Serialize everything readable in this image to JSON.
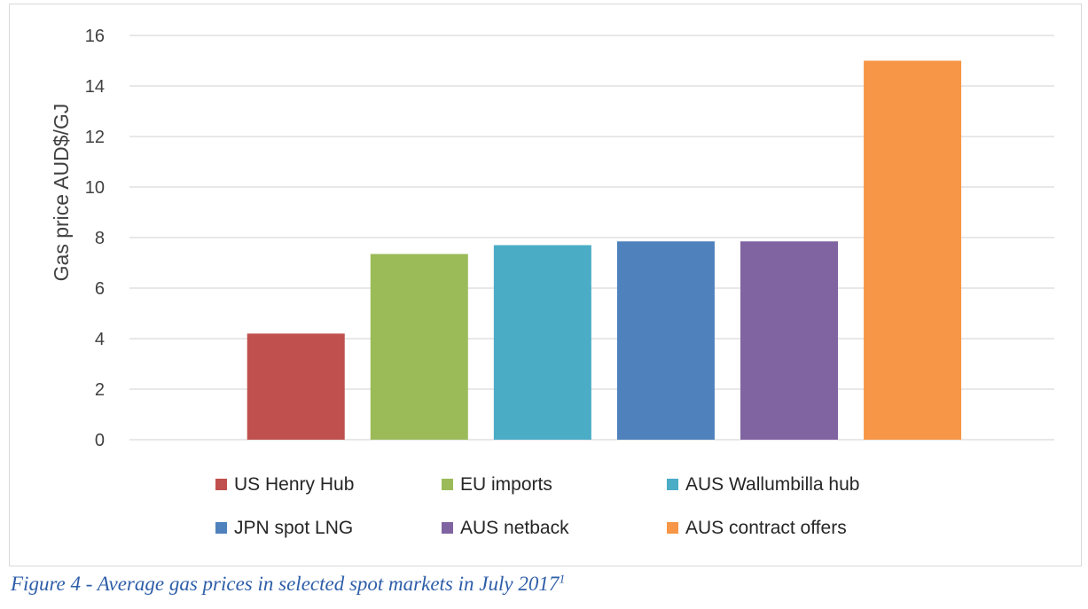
{
  "chart_data": {
    "type": "bar",
    "categories": [
      "US Henry Hub",
      "EU imports",
      "AUS Wallumbilla hub",
      "JPN spot LNG",
      "AUS netback",
      "AUS contract offers"
    ],
    "values": [
      4.2,
      7.35,
      7.7,
      7.85,
      7.85,
      15.0
    ],
    "colors": [
      "#c0504d",
      "#9bbb59",
      "#4bacc6",
      "#4f81bd",
      "#8064a2",
      "#f79646"
    ],
    "ylabel": "Gas price AUD$/GJ",
    "xlabel": "",
    "ylim": [
      0,
      16
    ],
    "yticks": [
      "0",
      "2",
      "4",
      "6",
      "8",
      "10",
      "12",
      "14",
      "16"
    ],
    "grid": true,
    "legend_position": "bottom"
  },
  "caption": {
    "text": "Figure 4 - Average gas prices in selected spot markets in July 2017",
    "footnote": "1"
  }
}
